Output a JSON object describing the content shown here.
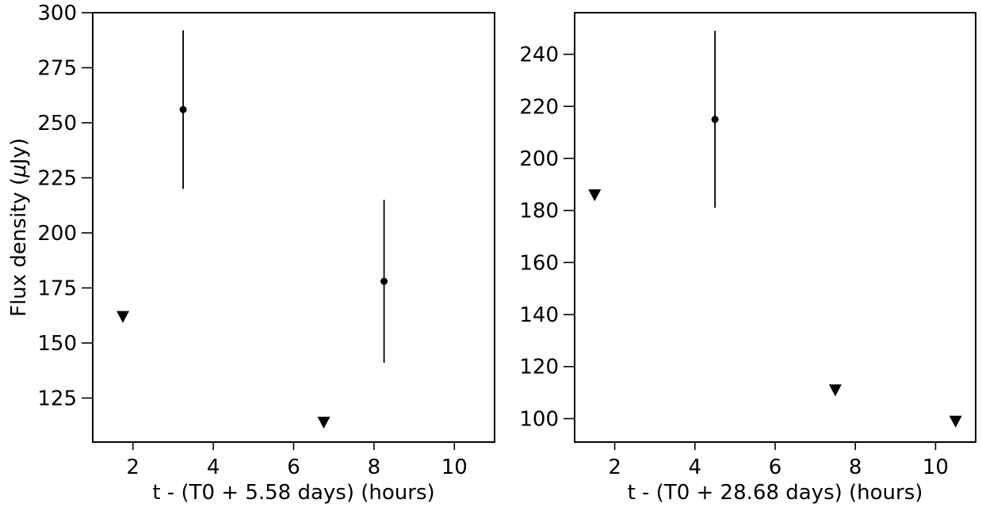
{
  "chart_data": [
    {
      "type": "scatter",
      "xlabel": "t - (T0 + 5.58 days) (hours)",
      "ylabel_prefix": "Flux density (",
      "ylabel_mu": "μ",
      "ylabel_suffix": "Jy)",
      "xlim": [
        1,
        11
      ],
      "ylim": [
        105,
        300
      ],
      "xticks": [
        2,
        4,
        6,
        8,
        10
      ],
      "yticks": [
        125,
        150,
        175,
        200,
        225,
        250,
        275,
        300
      ],
      "detections": [
        {
          "x": 3.25,
          "y": 256,
          "yerr": 36
        },
        {
          "x": 8.25,
          "y": 178,
          "yerr": 37
        }
      ],
      "upper_limits": [
        {
          "x": 1.75,
          "y": 162
        },
        {
          "x": 6.75,
          "y": 114
        }
      ],
      "marker_color": "#000000"
    },
    {
      "type": "scatter",
      "xlabel": "t - (T0 + 28.68 days) (hours)",
      "xlim": [
        1,
        11
      ],
      "ylim": [
        91,
        256
      ],
      "xticks": [
        2,
        4,
        6,
        8,
        10
      ],
      "yticks": [
        100,
        120,
        140,
        160,
        180,
        200,
        220,
        240
      ],
      "detections": [
        {
          "x": 4.5,
          "y": 215,
          "yerr": 34
        }
      ],
      "upper_limits": [
        {
          "x": 1.5,
          "y": 186
        },
        {
          "x": 7.5,
          "y": 111
        },
        {
          "x": 10.5,
          "y": 99
        }
      ],
      "marker_color": "#000000"
    }
  ]
}
